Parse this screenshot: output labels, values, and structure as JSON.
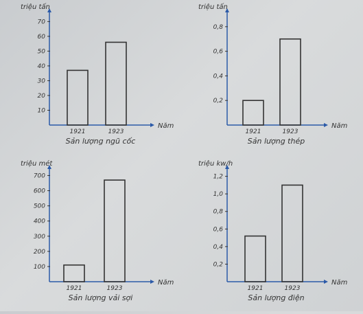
{
  "chart_data": [
    {
      "type": "bar",
      "categories": [
        "1921",
        "1923"
      ],
      "values": [
        37,
        56
      ],
      "yticks": [
        "10",
        "20",
        "30",
        "40",
        "50",
        "60",
        "70"
      ],
      "ytick_values": [
        10,
        20,
        30,
        40,
        50,
        60,
        70
      ],
      "ylim": [
        0,
        79
      ],
      "ylabel": "triệu tấn",
      "xlabel": "Năm",
      "caption": "Sản lượng ngũ cốc"
    },
    {
      "type": "bar",
      "categories": [
        "1921",
        "1923"
      ],
      "values": [
        0.2,
        0.7
      ],
      "yticks": [
        "0,2",
        "0,4",
        "0,6",
        "0,8"
      ],
      "ytick_values": [
        0.2,
        0.4,
        0.6,
        0.8
      ],
      "ylim": [
        0,
        0.95
      ],
      "ylabel": "triệu tấn",
      "xlabel": "Năm",
      "caption": "Sản lượng thép"
    },
    {
      "type": "bar",
      "categories": [
        "1921",
        "1923"
      ],
      "values": [
        110,
        670
      ],
      "yticks": [
        "100",
        "200",
        "300",
        "400",
        "500",
        "600",
        "700"
      ],
      "ytick_values": [
        100,
        200,
        300,
        400,
        500,
        600,
        700
      ],
      "ylim": [
        0,
        770
      ],
      "ylabel": "triệu mét",
      "xlabel": "Năm",
      "caption": "Sản lượng vải sợi"
    },
    {
      "type": "bar",
      "categories": [
        "1921",
        "1923"
      ],
      "values": [
        0.52,
        1.1
      ],
      "yticks": [
        "0,2",
        "0,4",
        "0,6",
        "0,8",
        "1,0",
        "1,2"
      ],
      "ytick_values": [
        0.2,
        0.4,
        0.6,
        0.8,
        1.0,
        1.2
      ],
      "ylim": [
        0,
        1.33
      ],
      "ylabel": "triệu kw/h",
      "xlabel": "Năm",
      "caption": "Sản lượng điện"
    }
  ]
}
